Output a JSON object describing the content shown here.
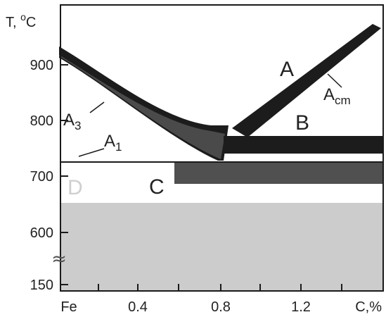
{
  "diagram": {
    "y_axis_title": {
      "main": "T, ",
      "superscript": "o",
      "unit": "C"
    },
    "x_axis_title": "C,%",
    "y_tick_labels": [
      "900",
      "800",
      "700",
      "600",
      "150"
    ],
    "x_tick_labels": [
      "Fe",
      "0.4",
      "0.8",
      "1.2"
    ],
    "region_labels": {
      "a": "A",
      "b": "B",
      "c": "C",
      "d": "D"
    },
    "line_labels": {
      "a3": {
        "main": "A",
        "sub": "3"
      },
      "a1": {
        "main": "A",
        "sub": "1"
      },
      "acm": {
        "main": "A",
        "sub": "cm"
      }
    },
    "axis_break_symbol": "≈",
    "colors": {
      "frame": "#1a1a1a",
      "band_dark": "#1c1c1c",
      "band_mid": "#4a4a4a",
      "band_c": "#505050",
      "region_d": "#cccccc",
      "label_d": "#cfcfcf"
    }
  }
}
